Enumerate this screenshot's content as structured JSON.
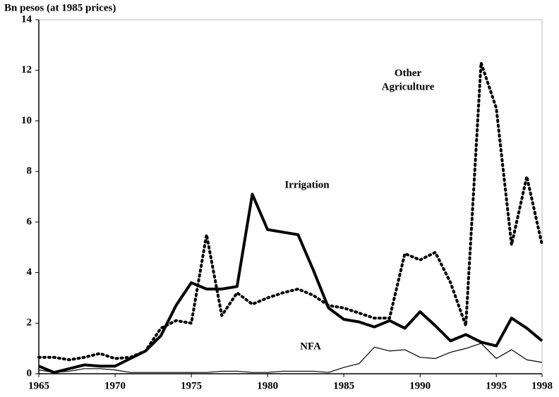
{
  "chart_data": {
    "type": "line",
    "y_label": "Bn pesos (at 1985 prices)",
    "x": [
      1965,
      1966,
      1967,
      1968,
      1969,
      1970,
      1971,
      1972,
      1973,
      1974,
      1975,
      1976,
      1977,
      1978,
      1979,
      1980,
      1981,
      1982,
      1983,
      1984,
      1985,
      1986,
      1987,
      1988,
      1989,
      1990,
      1991,
      1992,
      1993,
      1994,
      1995,
      1996,
      1997,
      1998
    ],
    "series": [
      {
        "name": "Irrigation",
        "color": "#000000",
        "style": "thick",
        "values": [
          0.3,
          0.05,
          0.2,
          0.35,
          0.3,
          0.3,
          0.6,
          0.9,
          1.5,
          2.7,
          3.6,
          3.35,
          3.35,
          3.45,
          7.1,
          5.7,
          5.6,
          5.5,
          4.1,
          2.6,
          2.15,
          2.05,
          1.85,
          2.1,
          1.8,
          2.45,
          1.9,
          1.3,
          1.55,
          1.25,
          1.1,
          2.2,
          1.8,
          1.3
        ]
      },
      {
        "name": "Other Agriculture",
        "color": "#000000",
        "style": "dotted",
        "values": [
          0.65,
          0.65,
          0.55,
          0.65,
          0.8,
          0.6,
          0.65,
          0.9,
          1.8,
          2.1,
          2.0,
          5.5,
          2.3,
          3.2,
          2.75,
          3.0,
          3.2,
          3.35,
          3.1,
          2.7,
          2.6,
          2.4,
          2.2,
          2.2,
          4.75,
          4.5,
          4.8,
          3.6,
          1.9,
          12.3,
          10.5,
          5.1,
          7.8,
          5.1
        ]
      },
      {
        "name": "NFA",
        "color": "#000000",
        "style": "thin",
        "values": [
          0.15,
          0.05,
          0.1,
          0.2,
          0.2,
          0.15,
          0.05,
          0.05,
          0.05,
          0.05,
          0.05,
          0.05,
          0.1,
          0.1,
          0.05,
          0.05,
          0.1,
          0.1,
          0.1,
          0.05,
          0.25,
          0.4,
          1.05,
          0.9,
          0.95,
          0.65,
          0.6,
          0.85,
          1.0,
          1.2,
          0.6,
          0.95,
          0.55,
          0.45
        ]
      }
    ],
    "xlim": [
      1965,
      1998
    ],
    "xticks": [
      1965,
      1970,
      1975,
      1980,
      1985,
      1990,
      1995,
      1998
    ],
    "ylim": [
      0,
      14
    ],
    "yticks": [
      0,
      2,
      4,
      6,
      8,
      10,
      12,
      14
    ],
    "grid": false
  }
}
